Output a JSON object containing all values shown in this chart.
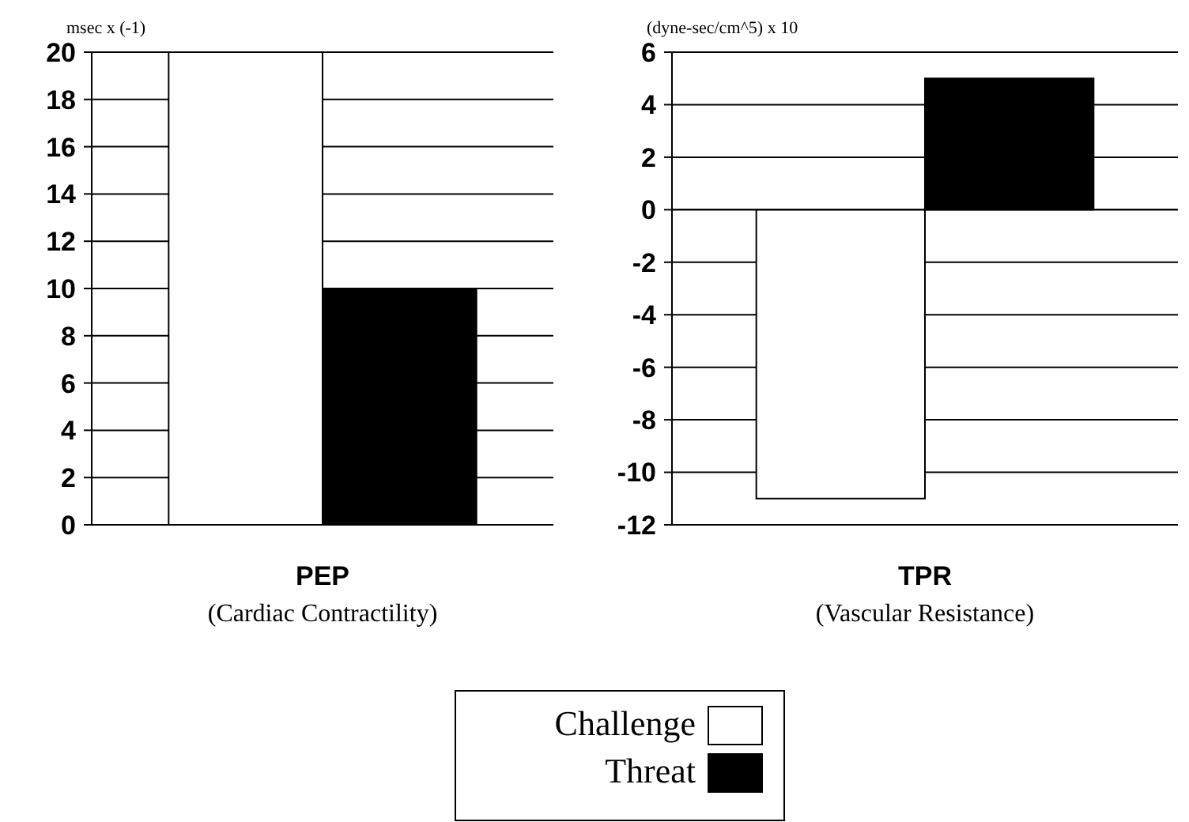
{
  "chart_data": [
    {
      "type": "bar",
      "ylabel": "msec x (-1)",
      "xlabel": "PEP",
      "annotations": [
        "(Cardiac Contractility)"
      ],
      "categories": [
        null
      ],
      "series": [
        {
          "name": "Challenge",
          "color": "#ffffff",
          "values": [
            20
          ]
        },
        {
          "name": "Threat",
          "color": "#000000",
          "values": [
            10
          ]
        }
      ],
      "ylim": [
        0,
        20
      ],
      "yticks": [
        0,
        2,
        4,
        6,
        8,
        10,
        12,
        14,
        16,
        18,
        20
      ],
      "grid": "y",
      "legend": "bottom"
    },
    {
      "type": "bar",
      "ylabel": "(dyne-sec/cm^5) x 10",
      "xlabel": "TPR",
      "annotations": [
        "(Vascular Resistance)"
      ],
      "categories": [
        null
      ],
      "series": [
        {
          "color": "#ffffff",
          "values": [
            -11
          ]
        },
        {
          "color": "#000000",
          "values": [
            5
          ]
        }
      ],
      "ylim": [
        -12,
        6
      ],
      "yticks": [
        -12,
        -10,
        -8,
        -6,
        -4,
        -2,
        0,
        2,
        4,
        6
      ],
      "grid": "y"
    }
  ]
}
